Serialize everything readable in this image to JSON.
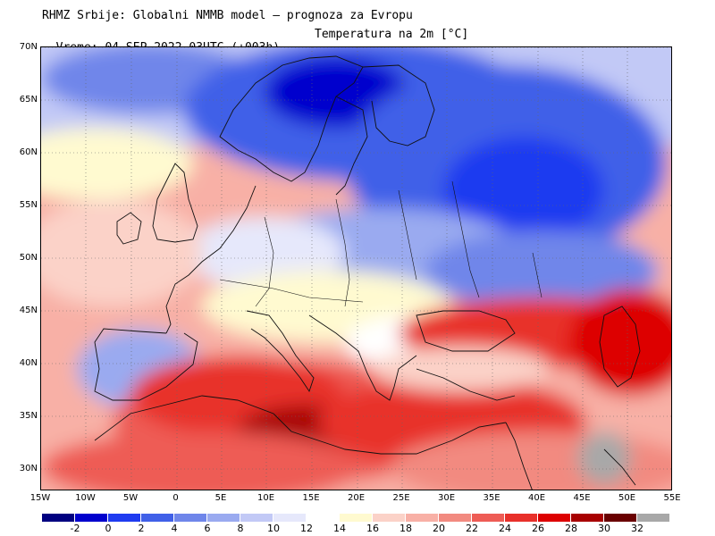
{
  "header": {
    "line1": "RHMZ Srbije: Globalni NMMB model — prognoza za Evropu",
    "line2": "Vreme: 04 SEP 2022 03UTC (+003h)",
    "parameter": "Temperatura na 2m [°C]"
  },
  "map": {
    "lat_min": 28,
    "lat_max": 70,
    "lon_min": -15,
    "lon_max": 55,
    "lat_ticks": [
      "70N",
      "65N",
      "60N",
      "55N",
      "50N",
      "45N",
      "40N",
      "35N",
      "30N"
    ],
    "lon_ticks": [
      "15W",
      "10W",
      "5W",
      "0",
      "5E",
      "10E",
      "15E",
      "20E",
      "25E",
      "30E",
      "35E",
      "40E",
      "45E",
      "50E",
      "55E"
    ]
  },
  "colorbar": {
    "colors": [
      "#000080",
      "#0000cd",
      "#1f3bf0",
      "#4060e8",
      "#6f86ea",
      "#9aaaf0",
      "#c2c9f6",
      "#e6e8fb",
      "#ffffff",
      "#fffad0",
      "#fbd2c8",
      "#f8b0a6",
      "#f28a80",
      "#ee5c55",
      "#e8302a",
      "#dd0000",
      "#a80000",
      "#6a0000",
      "#a8a8a8"
    ],
    "labels": [
      "-2",
      "0",
      "2",
      "4",
      "6",
      "8",
      "10",
      "12",
      "14",
      "16",
      "18",
      "20",
      "22",
      "24",
      "26",
      "28",
      "30",
      "32"
    ]
  }
}
